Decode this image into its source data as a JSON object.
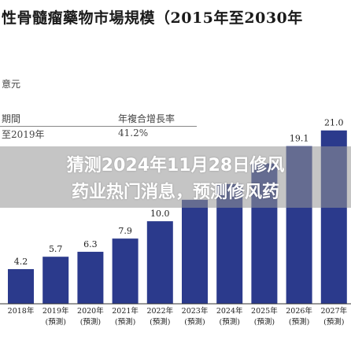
{
  "title": "性骨髓瘤藥物市場規模（2015年至2030年",
  "unit_label": "意元",
  "cagr_table": {
    "header": {
      "period": "期間",
      "cagr": "年複合增長率"
    },
    "rows": [
      {
        "period": "至2019年",
        "cagr": "41.2%"
      }
    ]
  },
  "overlay": {
    "line1": "猜测2024年11月28日修风",
    "line2": "药业热门消息，预测修风药"
  },
  "colors": {
    "bar": "#2b3a8c"
  },
  "chart_data": {
    "type": "bar",
    "categories": [
      "2018年",
      "2019年",
      "2020年",
      "2021年",
      "2022年",
      "2023年",
      "2024年",
      "2025年",
      "2026年",
      "2027年"
    ],
    "sublabels": [
      "",
      "(預測)",
      "(預測)",
      "(預測)",
      "(預測)",
      "(預測)",
      "(預測)",
      "(預測)",
      "(預測)",
      "(預測)"
    ],
    "values": [
      4.2,
      5.7,
      6.3,
      7.9,
      10.0,
      12.6,
      14.5,
      17.0,
      19.1,
      21.0
    ],
    "value_labels": [
      "4.2",
      "5.7",
      "6.3",
      "7.9",
      "10.0",
      "",
      "",
      "",
      "19.1",
      "21.0"
    ],
    "ylim": [
      0,
      22.5
    ]
  }
}
